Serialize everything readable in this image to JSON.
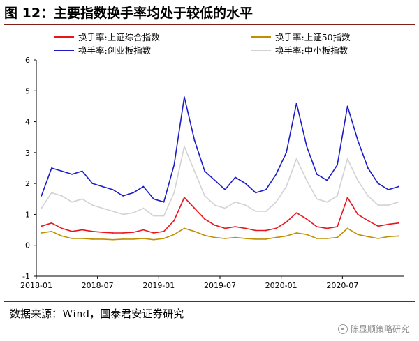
{
  "figure": {
    "title": "图 12：主要指数换手率均处于较低的水平",
    "source": "数据来源：Wind，国泰君安证券研究",
    "watermark": "陈显顺策略研究"
  },
  "colors": {
    "rule": "#7f1f16",
    "axis": "#000000"
  },
  "chart_data": {
    "type": "line",
    "x_range": [
      "2018-01",
      "2020-12"
    ],
    "x_ticks": [
      "2018-01",
      "2018-07",
      "2019-01",
      "2019-07",
      "2020-01",
      "2020-07"
    ],
    "ylim": [
      -1,
      6
    ],
    "y_ticks": [
      -1,
      0,
      1,
      2,
      3,
      4,
      5,
      6
    ],
    "legend_placement": "top",
    "series": [
      {
        "name": "换手率:上证综合指数",
        "color": "#e8141c",
        "points": [
          [
            "2018-01",
            0.62
          ],
          [
            "2018-02",
            0.72
          ],
          [
            "2018-03",
            0.55
          ],
          [
            "2018-04",
            0.45
          ],
          [
            "2018-05",
            0.5
          ],
          [
            "2018-06",
            0.45
          ],
          [
            "2018-07",
            0.42
          ],
          [
            "2018-08",
            0.4
          ],
          [
            "2018-09",
            0.4
          ],
          [
            "2018-10",
            0.42
          ],
          [
            "2018-11",
            0.5
          ],
          [
            "2018-12",
            0.4
          ],
          [
            "2019-01",
            0.45
          ],
          [
            "2019-02",
            0.8
          ],
          [
            "2019-03",
            1.55
          ],
          [
            "2019-04",
            1.2
          ],
          [
            "2019-05",
            0.85
          ],
          [
            "2019-06",
            0.65
          ],
          [
            "2019-07",
            0.55
          ],
          [
            "2019-08",
            0.6
          ],
          [
            "2019-09",
            0.55
          ],
          [
            "2019-10",
            0.48
          ],
          [
            "2019-11",
            0.48
          ],
          [
            "2019-12",
            0.55
          ],
          [
            "2020-01",
            0.75
          ],
          [
            "2020-02",
            1.05
          ],
          [
            "2020-03",
            0.85
          ],
          [
            "2020-04",
            0.6
          ],
          [
            "2020-05",
            0.55
          ],
          [
            "2020-06",
            0.6
          ],
          [
            "2020-07",
            1.55
          ],
          [
            "2020-08",
            1.0
          ],
          [
            "2020-09",
            0.8
          ],
          [
            "2020-10",
            0.62
          ],
          [
            "2020-11",
            0.68
          ],
          [
            "2020-12",
            0.72
          ]
        ]
      },
      {
        "name": "换手率:上证50指数",
        "color": "#c09000",
        "points": [
          [
            "2018-01",
            0.4
          ],
          [
            "2018-02",
            0.45
          ],
          [
            "2018-03",
            0.3
          ],
          [
            "2018-04",
            0.22
          ],
          [
            "2018-05",
            0.22
          ],
          [
            "2018-06",
            0.2
          ],
          [
            "2018-07",
            0.2
          ],
          [
            "2018-08",
            0.18
          ],
          [
            "2018-09",
            0.2
          ],
          [
            "2018-10",
            0.2
          ],
          [
            "2018-11",
            0.22
          ],
          [
            "2018-12",
            0.18
          ],
          [
            "2019-01",
            0.22
          ],
          [
            "2019-02",
            0.35
          ],
          [
            "2019-03",
            0.55
          ],
          [
            "2019-04",
            0.45
          ],
          [
            "2019-05",
            0.32
          ],
          [
            "2019-06",
            0.25
          ],
          [
            "2019-07",
            0.22
          ],
          [
            "2019-08",
            0.25
          ],
          [
            "2019-09",
            0.22
          ],
          [
            "2019-10",
            0.2
          ],
          [
            "2019-11",
            0.2
          ],
          [
            "2019-12",
            0.25
          ],
          [
            "2020-01",
            0.3
          ],
          [
            "2020-02",
            0.4
          ],
          [
            "2020-03",
            0.35
          ],
          [
            "2020-04",
            0.22
          ],
          [
            "2020-05",
            0.22
          ],
          [
            "2020-06",
            0.25
          ],
          [
            "2020-07",
            0.55
          ],
          [
            "2020-08",
            0.35
          ],
          [
            "2020-09",
            0.28
          ],
          [
            "2020-10",
            0.22
          ],
          [
            "2020-11",
            0.28
          ],
          [
            "2020-12",
            0.3
          ]
        ]
      },
      {
        "name": "换手率:创业板指数",
        "color": "#1b1bc8",
        "points": [
          [
            "2018-01",
            1.6
          ],
          [
            "2018-02",
            2.5
          ],
          [
            "2018-03",
            2.4
          ],
          [
            "2018-04",
            2.3
          ],
          [
            "2018-05",
            2.4
          ],
          [
            "2018-06",
            2.0
          ],
          [
            "2018-07",
            1.9
          ],
          [
            "2018-08",
            1.8
          ],
          [
            "2018-09",
            1.6
          ],
          [
            "2018-10",
            1.7
          ],
          [
            "2018-11",
            1.9
          ],
          [
            "2018-12",
            1.5
          ],
          [
            "2019-01",
            1.4
          ],
          [
            "2019-02",
            2.6
          ],
          [
            "2019-03",
            4.8
          ],
          [
            "2019-04",
            3.4
          ],
          [
            "2019-05",
            2.4
          ],
          [
            "2019-06",
            2.1
          ],
          [
            "2019-07",
            1.8
          ],
          [
            "2019-08",
            2.2
          ],
          [
            "2019-09",
            2.0
          ],
          [
            "2019-10",
            1.7
          ],
          [
            "2019-11",
            1.8
          ],
          [
            "2019-12",
            2.3
          ],
          [
            "2020-01",
            3.0
          ],
          [
            "2020-02",
            4.6
          ],
          [
            "2020-03",
            3.2
          ],
          [
            "2020-04",
            2.3
          ],
          [
            "2020-05",
            2.1
          ],
          [
            "2020-06",
            2.6
          ],
          [
            "2020-07",
            4.5
          ],
          [
            "2020-08",
            3.4
          ],
          [
            "2020-09",
            2.5
          ],
          [
            "2020-10",
            2.0
          ],
          [
            "2020-11",
            1.8
          ],
          [
            "2020-12",
            1.9
          ]
        ]
      },
      {
        "name": "换手率:中小板指数",
        "color": "#d2d2d2",
        "points": [
          [
            "2018-01",
            1.2
          ],
          [
            "2018-02",
            1.7
          ],
          [
            "2018-03",
            1.6
          ],
          [
            "2018-04",
            1.4
          ],
          [
            "2018-05",
            1.5
          ],
          [
            "2018-06",
            1.3
          ],
          [
            "2018-07",
            1.2
          ],
          [
            "2018-08",
            1.1
          ],
          [
            "2018-09",
            1.0
          ],
          [
            "2018-10",
            1.05
          ],
          [
            "2018-11",
            1.2
          ],
          [
            "2018-12",
            0.95
          ],
          [
            "2019-01",
            0.95
          ],
          [
            "2019-02",
            1.7
          ],
          [
            "2019-03",
            3.2
          ],
          [
            "2019-04",
            2.4
          ],
          [
            "2019-05",
            1.6
          ],
          [
            "2019-06",
            1.3
          ],
          [
            "2019-07",
            1.2
          ],
          [
            "2019-08",
            1.4
          ],
          [
            "2019-09",
            1.3
          ],
          [
            "2019-10",
            1.1
          ],
          [
            "2019-11",
            1.1
          ],
          [
            "2019-12",
            1.4
          ],
          [
            "2020-01",
            1.9
          ],
          [
            "2020-02",
            2.8
          ],
          [
            "2020-03",
            2.1
          ],
          [
            "2020-04",
            1.5
          ],
          [
            "2020-05",
            1.4
          ],
          [
            "2020-06",
            1.6
          ],
          [
            "2020-07",
            2.8
          ],
          [
            "2020-08",
            2.1
          ],
          [
            "2020-09",
            1.6
          ],
          [
            "2020-10",
            1.3
          ],
          [
            "2020-11",
            1.3
          ],
          [
            "2020-12",
            1.4
          ]
        ]
      }
    ]
  }
}
